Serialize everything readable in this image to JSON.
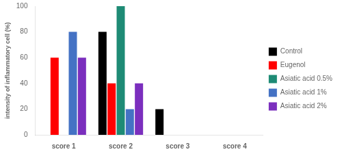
{
  "chart_data": {
    "type": "bar",
    "categories": [
      "score 1",
      "score 2",
      "score 3",
      "score 4"
    ],
    "series": [
      {
        "name": "Control",
        "color": "#000000",
        "values": [
          0,
          80,
          20,
          0
        ]
      },
      {
        "name": "Eugenol",
        "color": "#FF0000",
        "values": [
          60,
          40,
          0,
          0
        ]
      },
      {
        "name": "Asiatic acid 0.5%",
        "color": "#1E8B75",
        "values": [
          0,
          100,
          0,
          0
        ]
      },
      {
        "name": "Asiatic acid 1%",
        "color": "#4472C4",
        "values": [
          80,
          20,
          0,
          0
        ]
      },
      {
        "name": "Asiatic acid 2%",
        "color": "#7B2FBE",
        "values": [
          60,
          40,
          0,
          0
        ]
      }
    ],
    "ylabel": "intensity of inflammatory cell (%)",
    "ylim": [
      0,
      100
    ],
    "yticks": [
      0,
      20,
      40,
      60,
      80,
      100
    ],
    "grid": false,
    "legend": "right"
  }
}
